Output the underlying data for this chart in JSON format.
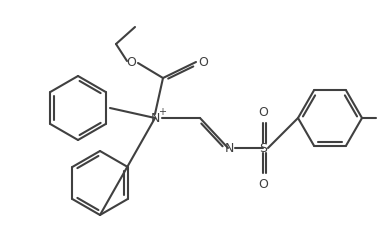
{
  "background": "#ffffff",
  "line_color": "#404040",
  "lw": 1.5,
  "figsize": [
    3.86,
    2.46
  ],
  "dpi": 100,
  "xlim": [
    0,
    386
  ],
  "ylim": [
    246,
    0
  ]
}
